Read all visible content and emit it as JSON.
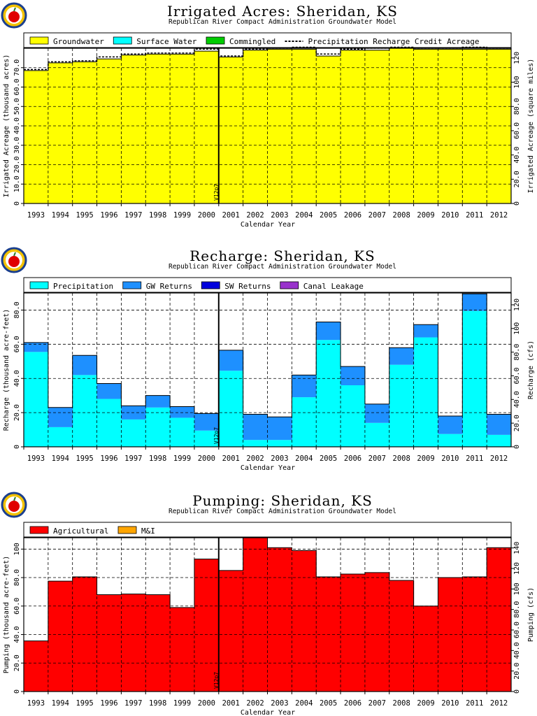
{
  "logo": "apple-logo",
  "chart_data": [
    {
      "type": "area",
      "title": "Irrigated Acres: Sheridan, KS",
      "subtitle": "Republican River Compact Administration Groundwater Model",
      "xlabel": "Calendar Year",
      "ylabel": "Irrigated Acreage (thousand acres)",
      "y2label": "Irrigated Acreage (square miles)",
      "ylim": [
        0,
        80
      ],
      "yticks": [
        "0",
        "10.0",
        "20.0",
        "30.0",
        "40.0",
        "50.0",
        "60.0",
        "70.0"
      ],
      "y2ticks": [
        "0",
        "20.0",
        "40.0",
        "60.0",
        "80.0",
        "100",
        "120"
      ],
      "categories": [
        "1993",
        "1994",
        "1995",
        "1996",
        "1997",
        "1998",
        "1999",
        "2000",
        "2001",
        "2002",
        "2003",
        "2004",
        "2005",
        "2006",
        "2007",
        "2008",
        "2009",
        "2010",
        "2011",
        "2012"
      ],
      "legend": [
        {
          "label": "Groundwater",
          "color": "#ffff00"
        },
        {
          "label": "Surface Water",
          "color": "#00ffff"
        },
        {
          "label": "Commingled",
          "color": "#00cc00"
        },
        {
          "label": "Precipitation Recharge Credit Acreage",
          "color": "#000000",
          "dashed": true
        }
      ],
      "series": [
        {
          "name": "Groundwater",
          "values": [
            68.5,
            72.5,
            73,
            74.5,
            76.5,
            77,
            77,
            78.5,
            75.5,
            79,
            79.5,
            79.5,
            76,
            79,
            79,
            80,
            79.5,
            79.5,
            79.5,
            79.5
          ]
        },
        {
          "name": "Surface Water",
          "values": [
            0,
            0,
            0,
            0,
            0,
            0,
            0,
            0,
            0,
            0,
            0,
            0,
            0,
            0,
            0,
            0,
            0,
            0,
            0,
            0
          ]
        },
        {
          "name": "Commingled",
          "values": [
            0,
            0,
            0,
            0,
            0,
            0,
            0,
            0,
            0,
            0,
            0,
            0,
            0,
            0,
            0,
            0,
            0,
            0,
            0,
            0
          ]
        },
        {
          "name": "Precipitation Recharge Credit Acreage",
          "values": [
            68.5,
            72.5,
            73,
            75,
            76.5,
            77,
            77,
            79,
            75.5,
            79,
            79.5,
            80,
            76.5,
            79,
            79.5,
            80,
            79.5,
            79.5,
            80,
            79.5
          ]
        }
      ],
      "vline": {
        "after": "2000",
        "label": "V12p7"
      },
      "grid": true,
      "legend_position": "top"
    },
    {
      "type": "area",
      "title": "Recharge: Sheridan, KS",
      "subtitle": "Republican River Compact Administration Groundwater Model",
      "xlabel": "Calendar Year",
      "ylabel": "Recharge (thousand acre-feet)",
      "y2label": "Recharge (cfs)",
      "ylim": [
        0,
        90
      ],
      "yticks": [
        "0",
        "20.0",
        "40.0",
        "60.0",
        "80.0"
      ],
      "y2ticks": [
        "0",
        "20.0",
        "40.0",
        "60.0",
        "80.0",
        "100",
        "120"
      ],
      "categories": [
        "1993",
        "1994",
        "1995",
        "1996",
        "1997",
        "1998",
        "1999",
        "2000",
        "2001",
        "2002",
        "2003",
        "2004",
        "2005",
        "2006",
        "2007",
        "2008",
        "2009",
        "2010",
        "2011",
        "2012"
      ],
      "legend": [
        {
          "label": "Precipitation",
          "color": "#00ffff"
        },
        {
          "label": "GW Returns",
          "color": "#1e90ff"
        },
        {
          "label": "SW Returns",
          "color": "#0000dd"
        },
        {
          "label": "Canal Leakage",
          "color": "#9932cc"
        }
      ],
      "series": [
        {
          "name": "Precipitation",
          "values": [
            55.5,
            11.5,
            42,
            28,
            16,
            23,
            17,
            9.5,
            44.5,
            4,
            4,
            29,
            62.5,
            36,
            14,
            48,
            64,
            7.5,
            79.5,
            7
          ]
        },
        {
          "name": "GW Returns",
          "values": [
            5.5,
            11.5,
            11.5,
            9,
            8,
            7,
            6.5,
            10,
            12,
            15,
            13.5,
            13,
            10.5,
            11,
            11,
            10,
            7.5,
            10.5,
            10,
            12
          ]
        },
        {
          "name": "SW Returns",
          "values": [
            0,
            0,
            0,
            0,
            0,
            0,
            0,
            0,
            0,
            0,
            0,
            0,
            0,
            0,
            0,
            0,
            0,
            0,
            0,
            0
          ]
        },
        {
          "name": "Canal Leakage",
          "values": [
            0,
            0,
            0,
            0,
            0,
            0,
            0,
            0,
            0,
            0,
            0,
            0,
            0,
            0,
            0,
            0,
            0,
            0,
            0,
            0
          ]
        }
      ],
      "vline": {
        "after": "2000",
        "label": "V12p7"
      },
      "grid": true,
      "legend_position": "top"
    },
    {
      "type": "area",
      "title": "Pumping: Sheridan, KS",
      "subtitle": "Republican River Compact Administration Groundwater Model",
      "xlabel": "Calendar Year",
      "ylabel": "Pumping (thousand acre-feet)",
      "y2label": "Pumping (cfs)",
      "ylim": [
        0,
        108
      ],
      "yticks": [
        "0",
        "20.0",
        "40.0",
        "60.0",
        "80.0",
        "100"
      ],
      "y2ticks": [
        "0",
        "20.0",
        "40.0",
        "60.0",
        "80.0",
        "100",
        "120",
        "140"
      ],
      "categories": [
        "1993",
        "1994",
        "1995",
        "1996",
        "1997",
        "1998",
        "1999",
        "2000",
        "2001",
        "2002",
        "2003",
        "2004",
        "2005",
        "2006",
        "2007",
        "2008",
        "2009",
        "2010",
        "2011",
        "2012"
      ],
      "legend": [
        {
          "label": "Agricultural",
          "color": "#ff0000"
        },
        {
          "label": "M&I",
          "color": "#ffa500"
        }
      ],
      "series": [
        {
          "name": "Agricultural",
          "values": [
            35.5,
            77.5,
            80.5,
            68,
            68.5,
            68,
            59,
            93,
            85,
            108,
            101,
            99,
            80.5,
            82.5,
            83.5,
            78,
            60,
            80,
            80.5,
            101
          ]
        },
        {
          "name": "M&I",
          "values": [
            0,
            0,
            0,
            0,
            0,
            0,
            0,
            0,
            0,
            0,
            0,
            0,
            0,
            0,
            0,
            0,
            0,
            0,
            0,
            0
          ]
        }
      ],
      "vline": {
        "after": "2000",
        "label": "V12p7"
      },
      "grid": true,
      "legend_position": "top"
    }
  ]
}
